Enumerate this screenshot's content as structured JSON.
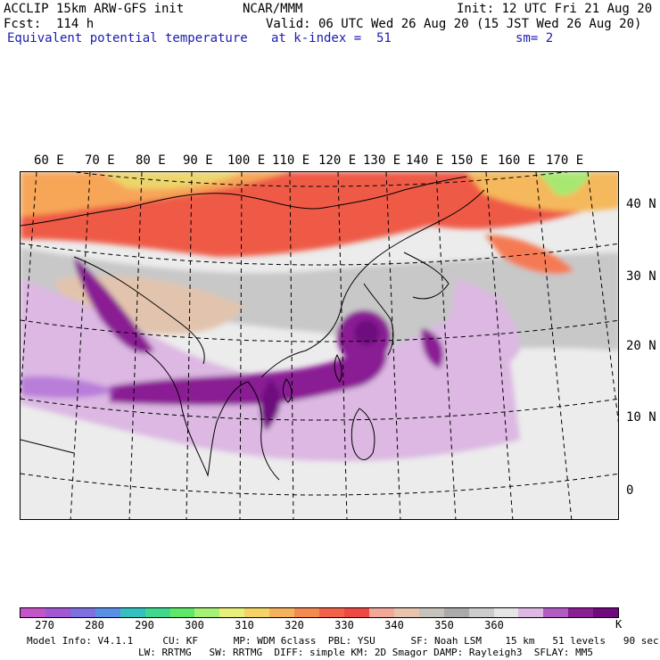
{
  "header": {
    "title_left": "ACCLIP 15km ARW-GFS init",
    "center": "NCAR/MMM",
    "init": "Init: 12 UTC Fri 21 Aug 20",
    "forecast": "Fcst:  114 h",
    "valid": "Valid: 06 UTC Wed 26 Aug 20 (15 JST Wed 26 Aug 20)",
    "field": "Equivalent potential temperature",
    "level": "at k-index =  51",
    "smoothing": "sm= 2"
  },
  "map": {
    "lon_labels": [
      "60 E",
      "70 E",
      "80 E",
      "90 E",
      "100 E",
      "110 E",
      "120 E",
      "130 E",
      "140 E",
      "150 E",
      "160 E",
      "170 E"
    ],
    "lat_labels": [
      "40 N",
      "30 N",
      "20 N",
      "10 N",
      "0"
    ]
  },
  "colorbar": {
    "colors": [
      "#c455c8",
      "#a257d4",
      "#7e70de",
      "#5a8fe6",
      "#35c0c0",
      "#3ed88e",
      "#5ee86a",
      "#a6f075",
      "#e8f07a",
      "#f5d466",
      "#f5b25c",
      "#f58a50",
      "#f2614a",
      "#ee4a44",
      "#f2a898",
      "#e8c4ae",
      "#c8c2bc",
      "#aaaaaa",
      "#cccccc",
      "#e6e6e6",
      "#dcb8e2",
      "#b05cc2",
      "#8a1e94",
      "#6e0a7e"
    ],
    "labels": [
      "270",
      "280",
      "290",
      "300",
      "310",
      "320",
      "330",
      "340",
      "350",
      "360"
    ],
    "unit": "K"
  },
  "footer": {
    "line1": "Model Info: V4.1.1     CU: KF      MP: WDM 6class  PBL: YSU      SF: Noah LSM    15 km   51 levels   90 sec",
    "line2": "LW: RRTMG   SW: RRTMG  DIFF: simple KM: 2D Smagor DAMP: Rayleigh3  SFLAY: MM5"
  }
}
